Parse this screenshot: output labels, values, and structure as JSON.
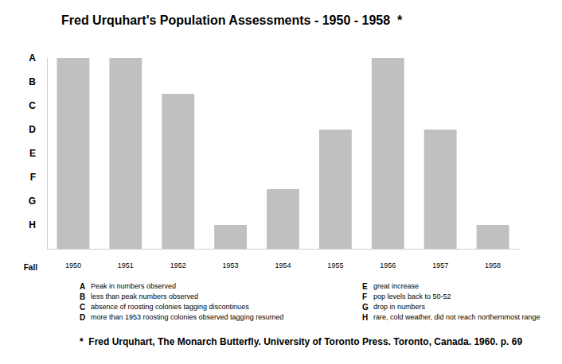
{
  "chart_data": {
    "type": "bar",
    "title": "Fred Urquhart's Population Assessments - 1950 - 1958  *",
    "x_label": "Fall",
    "categories": [
      "1950",
      "1951",
      "1952",
      "1953",
      "1954",
      "1955",
      "1956",
      "1957",
      "1958"
    ],
    "values": [
      8,
      8,
      6.5,
      1,
      2.5,
      5,
      8,
      5,
      1
    ],
    "color": "#c0c0c0",
    "ylim": [
      0,
      8
    ],
    "yticks": [
      {
        "value": 8,
        "label": "A"
      },
      {
        "value": 7,
        "label": "B"
      },
      {
        "value": 6,
        "label": "C"
      },
      {
        "value": 5,
        "label": "D"
      },
      {
        "value": 4,
        "label": "E"
      },
      {
        "value": 3,
        "label": "F"
      },
      {
        "value": 2,
        "label": "G"
      },
      {
        "value": 1,
        "label": "H"
      }
    ],
    "grid": false,
    "annotations": [
      {
        "label": "A",
        "text": "Peak in numbers observed"
      },
      {
        "label": "B",
        "text": "less than peak numbers observed"
      },
      {
        "label": "C",
        "text": "absence of roosting colonies tagging discontinues"
      },
      {
        "label": "D",
        "text": "more than 1953 roosting colonies observed tagging resumed"
      },
      {
        "label": "E",
        "text": "great increase"
      },
      {
        "label": "F",
        "text": "pop levels back to 50-52"
      },
      {
        "label": "G",
        "text": "drop in numbers"
      },
      {
        "label": "H",
        "text": "rare, cold weather, did not reach northernmost range"
      }
    ],
    "footnote": "*  Fred Urquhart, The Monarch Butterfly. University of Toronto Press. Toronto, Canada. 1960. p. 69"
  }
}
